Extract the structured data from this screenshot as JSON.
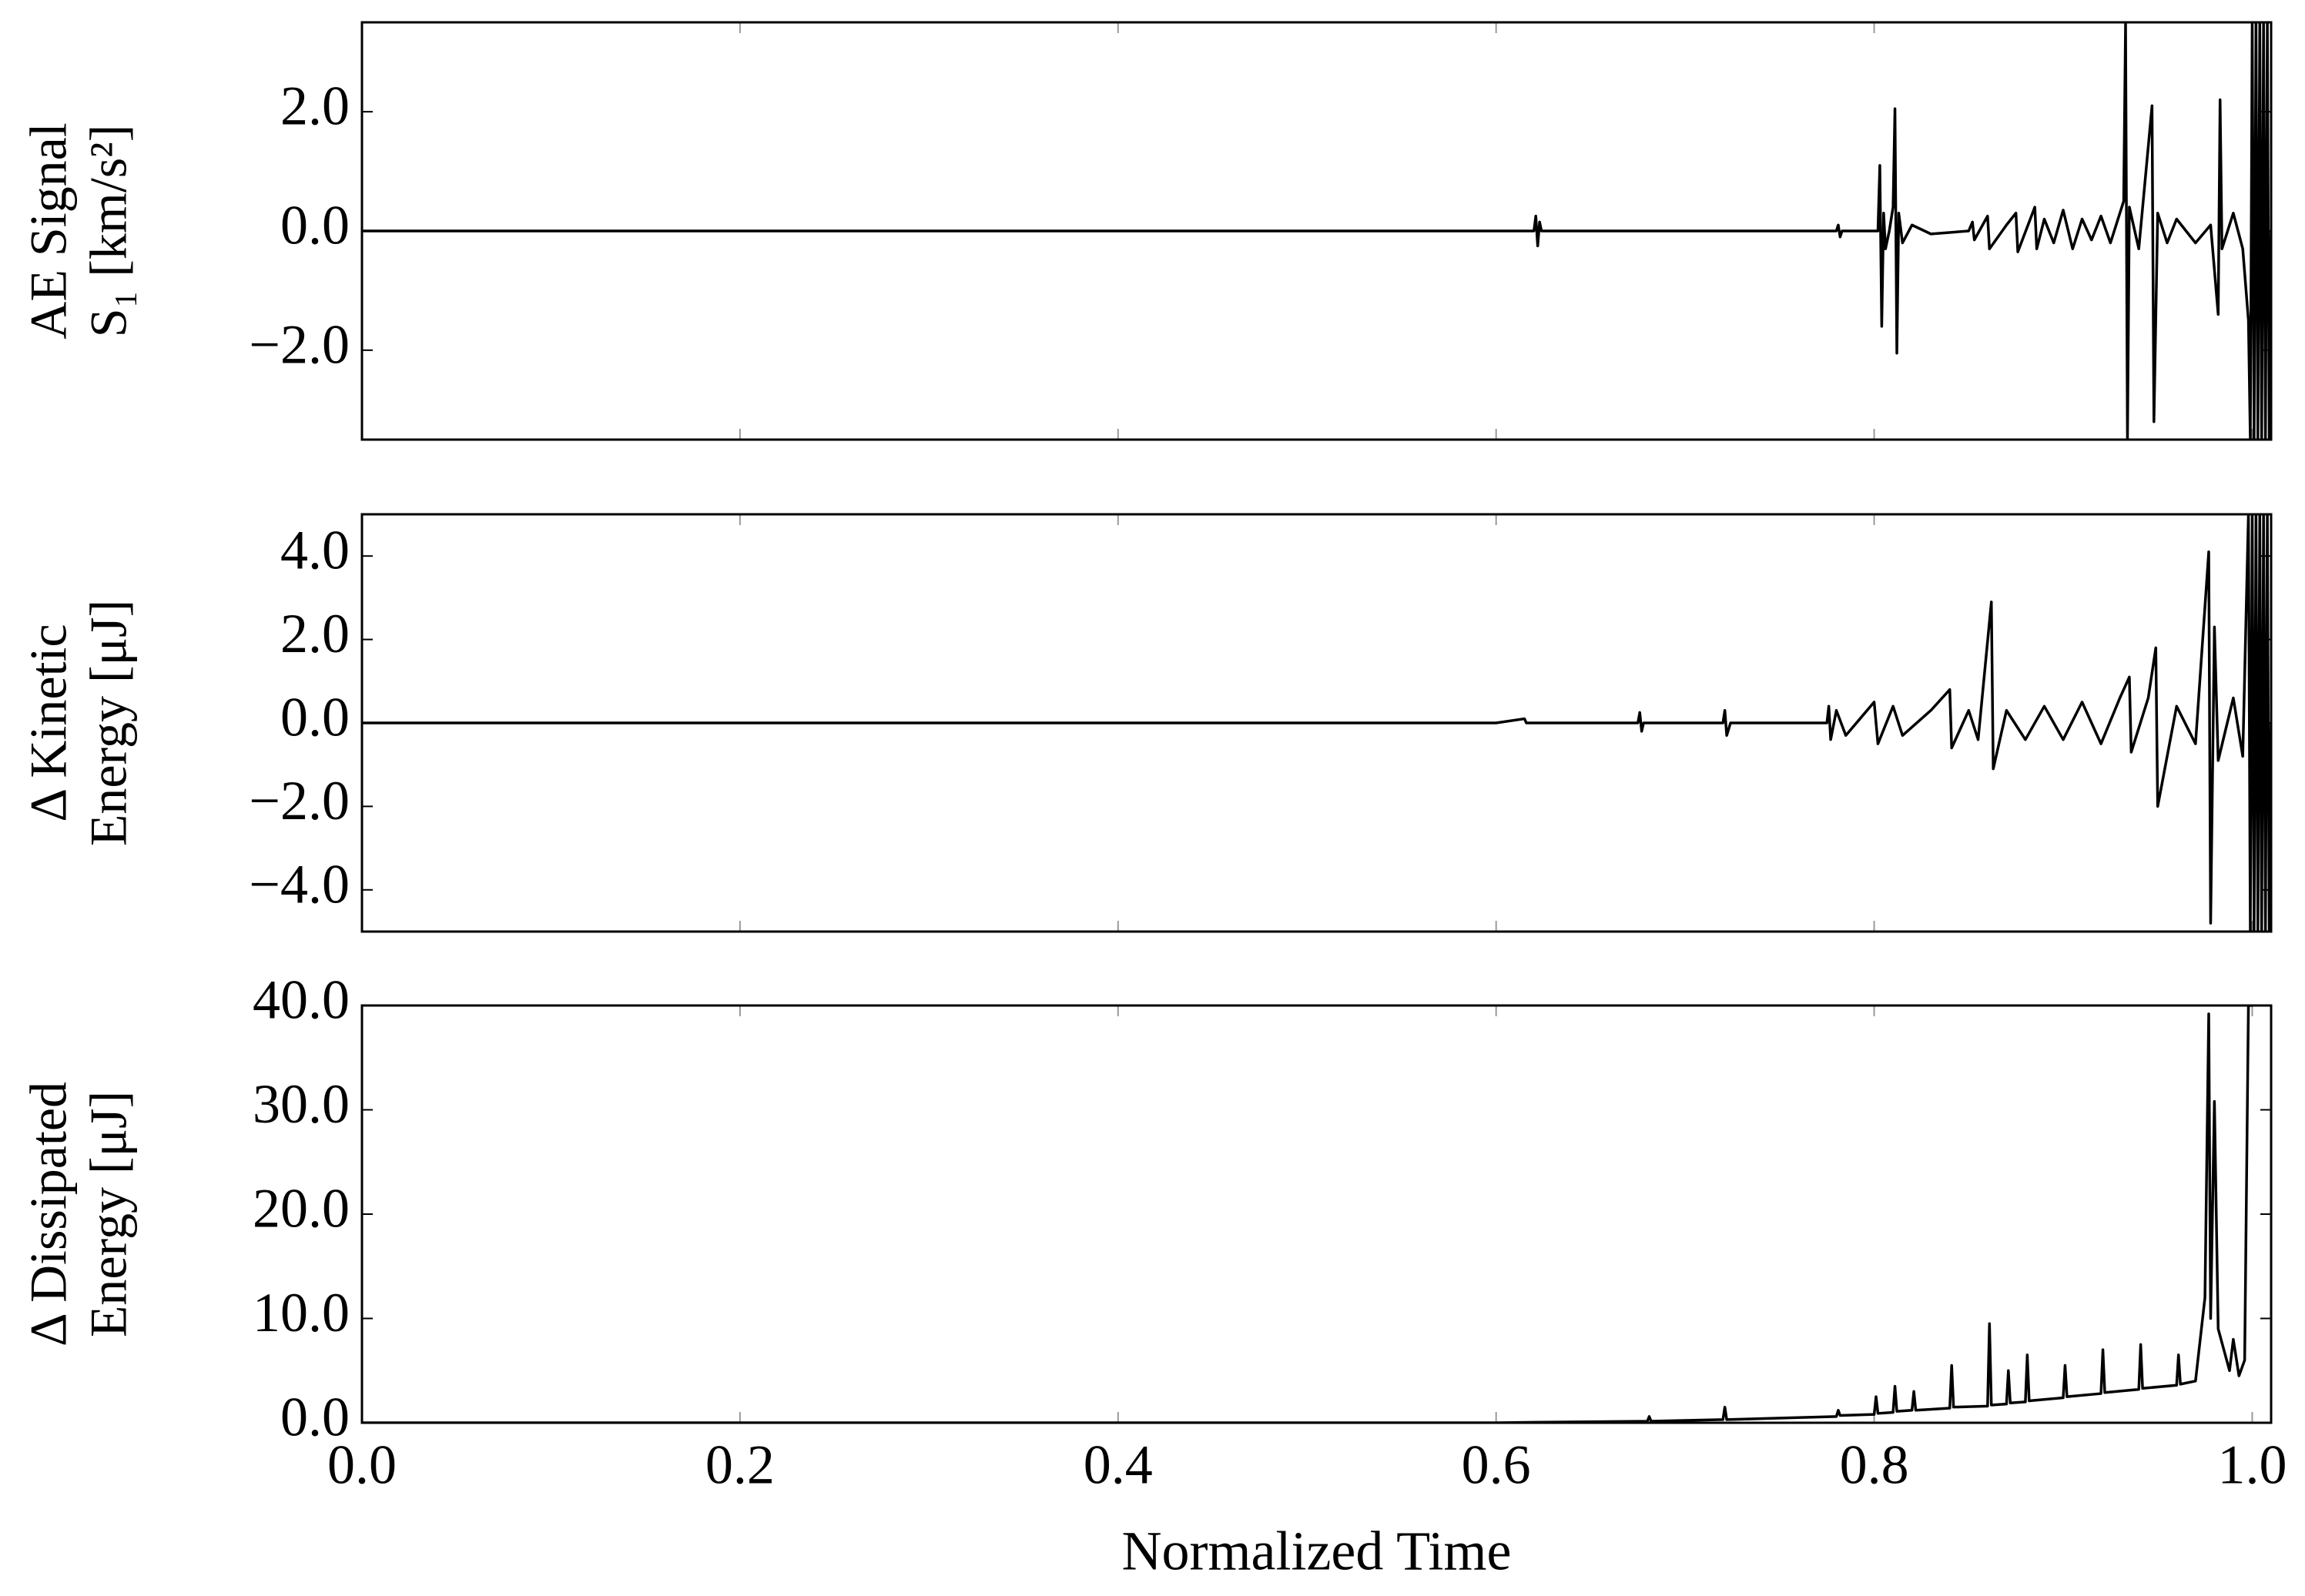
{
  "chart_data": [
    {
      "type": "line",
      "ylabel": [
        "AE Signal",
        "S₁ [km/s²]"
      ],
      "xlim": [
        0,
        1.01
      ],
      "ylim": [
        -3.5,
        3.5
      ],
      "xticks": [
        0,
        0.2,
        0.4,
        0.6,
        0.8,
        1
      ],
      "yticks": [
        {
          "value": -2,
          "label": "−2.0"
        },
        {
          "value": 0,
          "label": "0.0"
        },
        {
          "value": 2,
          "label": "2.0"
        }
      ],
      "x": [
        0,
        0.62,
        0.621,
        0.622,
        0.623,
        0.624,
        0.78,
        0.781,
        0.782,
        0.783,
        0.802,
        0.803,
        0.804,
        0.805,
        0.806,
        0.808,
        0.81,
        0.811,
        0.812,
        0.813,
        0.815,
        0.82,
        0.83,
        0.85,
        0.852,
        0.853,
        0.86,
        0.861,
        0.87,
        0.875,
        0.876,
        0.885,
        0.886,
        0.89,
        0.895,
        0.9,
        0.905,
        0.91,
        0.915,
        0.92,
        0.925,
        0.932,
        0.933,
        0.934,
        0.935,
        0.94,
        0.947,
        0.948,
        0.95,
        0.955,
        0.96,
        0.97,
        0.978,
        0.982,
        0.983,
        0.984,
        0.99,
        0.995,
        0.998,
        0.999,
        1.0,
        1.001,
        1.002,
        1.003,
        1.004,
        1.005,
        1.006,
        1.007,
        1.008,
        1.009,
        1.01
      ],
      "series": [
        {
          "color": "#000000",
          "values": [
            0,
            0,
            0.25,
            -0.25,
            0.15,
            0,
            0,
            0.1,
            -0.1,
            0,
            0,
            1.1,
            -1.6,
            0.3,
            -0.3,
            0,
            0.4,
            2.05,
            -2.05,
            0.3,
            -0.2,
            0.1,
            -0.05,
            0,
            0.15,
            -0.15,
            0.25,
            -0.3,
            0.1,
            0.3,
            -0.35,
            0.4,
            -0.3,
            0.2,
            -0.2,
            0.35,
            -0.3,
            0.2,
            -0.15,
            0.25,
            -0.2,
            0.5,
            3.5,
            -3.5,
            0.4,
            -0.3,
            2.1,
            -3.2,
            0.3,
            -0.2,
            0.2,
            -0.2,
            0.1,
            -1.4,
            2.2,
            -0.3,
            0.3,
            -0.3,
            -1.5,
            -3.5,
            3.5,
            -3.5,
            3.5,
            -3.5,
            3.5,
            -3.5,
            3.5,
            -3.5,
            3.5,
            -3.5,
            0
          ]
        }
      ]
    },
    {
      "type": "line",
      "ylabel": [
        "Δ Kinetic",
        "Energy [μJ]"
      ],
      "xlim": [
        0,
        1.01
      ],
      "ylim": [
        -5,
        5
      ],
      "xticks": [
        0,
        0.2,
        0.4,
        0.6,
        0.8,
        1
      ],
      "yticks": [
        {
          "value": -4,
          "label": "−4.0"
        },
        {
          "value": -2,
          "label": "−2.0"
        },
        {
          "value": 0,
          "label": "0.0"
        },
        {
          "value": 2,
          "label": "2.0"
        },
        {
          "value": 4,
          "label": "4.0"
        }
      ],
      "x": [
        0,
        0.6,
        0.615,
        0.616,
        0.675,
        0.676,
        0.677,
        0.678,
        0.72,
        0.721,
        0.722,
        0.724,
        0.775,
        0.776,
        0.777,
        0.78,
        0.785,
        0.8,
        0.802,
        0.81,
        0.815,
        0.83,
        0.84,
        0.841,
        0.85,
        0.855,
        0.862,
        0.863,
        0.87,
        0.88,
        0.89,
        0.9,
        0.91,
        0.92,
        0.93,
        0.935,
        0.936,
        0.945,
        0.949,
        0.95,
        0.96,
        0.97,
        0.977,
        0.978,
        0.98,
        0.982,
        0.99,
        0.995,
        0.998,
        0.999,
        1.0,
        1.001,
        1.002,
        1.003,
        1.004,
        1.005,
        1.006,
        1.007,
        1.008,
        1.009,
        1.01
      ],
      "series": [
        {
          "color": "#000000",
          "values": [
            0,
            0,
            0.1,
            0,
            0,
            0.25,
            -0.2,
            0,
            0,
            0.3,
            -0.3,
            0,
            0,
            0.4,
            -0.4,
            0.3,
            -0.3,
            0.5,
            -0.5,
            0.4,
            -0.3,
            0.3,
            0.8,
            -0.6,
            0.3,
            -0.4,
            2.9,
            -1.1,
            0.3,
            -0.4,
            0.4,
            -0.4,
            0.5,
            -0.5,
            0.6,
            1.1,
            -0.7,
            0.6,
            1.8,
            -2.0,
            0.4,
            -0.5,
            4.1,
            -4.8,
            2.3,
            -0.9,
            0.6,
            -0.8,
            5,
            -5,
            5,
            -5,
            5,
            -5,
            5,
            -5,
            5,
            -5,
            5,
            -5,
            0
          ]
        }
      ]
    },
    {
      "type": "line",
      "ylabel": [
        "Δ Dissipated",
        "Energy [μJ]"
      ],
      "xlabel": "Normalized Time",
      "xlim": [
        0,
        1.01
      ],
      "ylim": [
        0,
        40
      ],
      "xticks": [
        {
          "value": 0,
          "label": "0.0"
        },
        {
          "value": 0.2,
          "label": "0.2"
        },
        {
          "value": 0.4,
          "label": "0.4"
        },
        {
          "value": 0.6,
          "label": "0.6"
        },
        {
          "value": 0.8,
          "label": "0.8"
        },
        {
          "value": 1,
          "label": "1.0"
        }
      ],
      "yticks": [
        {
          "value": 0,
          "label": "0.0"
        },
        {
          "value": 10,
          "label": "10.0"
        },
        {
          "value": 20,
          "label": "20.0"
        },
        {
          "value": 30,
          "label": "30.0"
        },
        {
          "value": 40,
          "label": "40.0"
        }
      ],
      "x": [
        0,
        0.6,
        0.62,
        0.68,
        0.681,
        0.682,
        0.72,
        0.721,
        0.722,
        0.78,
        0.781,
        0.782,
        0.8,
        0.801,
        0.802,
        0.81,
        0.811,
        0.812,
        0.82,
        0.821,
        0.822,
        0.84,
        0.841,
        0.842,
        0.86,
        0.861,
        0.862,
        0.87,
        0.871,
        0.872,
        0.88,
        0.881,
        0.882,
        0.9,
        0.901,
        0.902,
        0.92,
        0.921,
        0.922,
        0.94,
        0.941,
        0.942,
        0.96,
        0.961,
        0.962,
        0.97,
        0.975,
        0.977,
        0.978,
        0.98,
        0.982,
        0.985,
        0.988,
        0.99,
        0.993,
        0.996,
        0.998,
        1.0
      ],
      "series": [
        {
          "color": "#000000",
          "values": [
            0,
            0,
            0.05,
            0.15,
            0.6,
            0.15,
            0.3,
            1.5,
            0.3,
            0.6,
            1.2,
            0.7,
            0.8,
            2.5,
            0.9,
            1.0,
            3.5,
            1.1,
            1.2,
            3.0,
            1.2,
            1.4,
            5.5,
            1.5,
            1.6,
            9.5,
            1.7,
            1.8,
            5.0,
            1.9,
            2.0,
            6.5,
            2.1,
            2.4,
            5.5,
            2.5,
            2.8,
            7.0,
            2.9,
            3.2,
            7.5,
            3.3,
            3.6,
            6.5,
            3.7,
            4.0,
            12,
            39.2,
            10,
            30.8,
            9,
            7,
            5,
            8,
            4.5,
            6,
            40,
            40
          ]
        }
      ]
    }
  ]
}
